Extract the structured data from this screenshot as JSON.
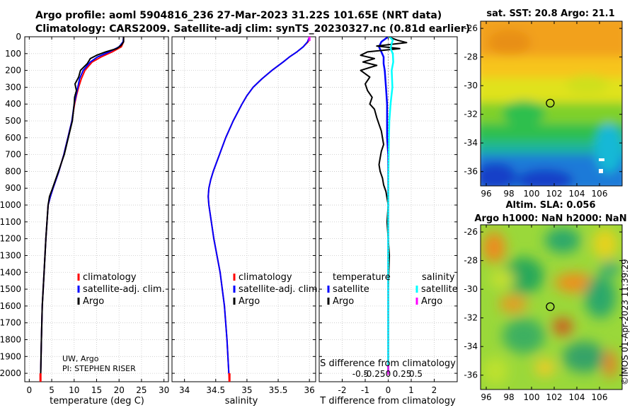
{
  "header": {
    "line1": "Argo profile: aoml 5904816_236 27-Mar-2023 31.22S 101.65E (NRT data)",
    "line2": "Climatology: CARS2009. Satellite-adj clim: synTS_20230327.nc (0.81d earlier)"
  },
  "colors": {
    "climatology": "#ff0000",
    "satellite": "#0000ff",
    "argo": "#000000",
    "sat_salinity": "#00ffff",
    "argo_salinity": "#ff00ff"
  },
  "chart_data": [
    {
      "type": "line",
      "id": "temperature",
      "xlabel": "temperature (deg C)",
      "xlim": [
        -1,
        31
      ],
      "ylim": [
        2050,
        0
      ],
      "xticks": [
        0,
        5,
        10,
        15,
        20,
        25,
        30
      ],
      "yticks": [
        0,
        100,
        200,
        300,
        400,
        500,
        600,
        700,
        800,
        900,
        1000,
        1100,
        1200,
        1300,
        1400,
        1500,
        1600,
        1700,
        1800,
        1900,
        2000
      ],
      "legend": {
        "placement": "center-right",
        "entries": [
          "climatology",
          "satellite-adj. clim.",
          "Argo"
        ]
      },
      "annotation": [
        "UW, Argo",
        "PI: STEPHEN RISER"
      ],
      "series": [
        {
          "name": "climatology",
          "depth": [
            0,
            30,
            60,
            90,
            120,
            150,
            200,
            250,
            300,
            350,
            400,
            500,
            600,
            700,
            800,
            900,
            950,
            1000,
            1200,
            1400,
            1600,
            1800,
            2000,
            2050
          ],
          "values": [
            21,
            21,
            20.5,
            18.5,
            16,
            14,
            12.4,
            11.6,
            11,
            10.5,
            10.1,
            9.5,
            8.6,
            7.7,
            6.6,
            5.3,
            4.7,
            4.2,
            3.7,
            3.3,
            2.9,
            2.7,
            2.55,
            2.5
          ]
        },
        {
          "name": "satellite-adj. clim.",
          "depth": [
            0,
            30,
            60,
            90,
            120,
            150,
            200,
            250,
            300,
            350,
            400,
            500,
            600,
            700,
            800,
            900,
            950,
            1000,
            1200,
            1400,
            1600,
            1800,
            2000
          ],
          "values": [
            21,
            20.9,
            20,
            17.8,
            15.2,
            13.6,
            12,
            11.2,
            10.8,
            10.4,
            10,
            9.5,
            8.6,
            7.7,
            6.6,
            5.3,
            4.7,
            4.2,
            3.7,
            3.3,
            2.9,
            2.7,
            2.55
          ]
        },
        {
          "name": "Argo",
          "depth": [
            0,
            30,
            50,
            70,
            90,
            110,
            130,
            160,
            200,
            240,
            280,
            320,
            360,
            400,
            450,
            500,
            600,
            700,
            800,
            900,
            950,
            1000,
            1200,
            1400,
            1600,
            1800,
            2000
          ],
          "values": [
            21,
            21,
            20.5,
            19.5,
            17,
            15,
            13.6,
            12.9,
            11.4,
            11,
            10.2,
            10.5,
            10.1,
            10,
            9.8,
            9.6,
            8.7,
            7.8,
            6.5,
            5.2,
            4.5,
            4.2,
            3.7,
            3.3,
            2.9,
            2.7,
            2.55
          ]
        }
      ]
    },
    {
      "type": "line",
      "id": "salinity",
      "xlabel": "salinity",
      "xlim": [
        33.8,
        36.1
      ],
      "ylim": [
        2050,
        0
      ],
      "xticks": [
        34,
        34.5,
        35,
        35.5,
        36
      ],
      "legend": {
        "placement": "center-right",
        "entries": [
          "climatology",
          "satellite-adj. clim.",
          "Argo"
        ]
      },
      "series": [
        {
          "name": "climatology",
          "depth": [
            0,
            30,
            60,
            90,
            120,
            150,
            200,
            250,
            300,
            350,
            400,
            500,
            600,
            700,
            800,
            850,
            900,
            950,
            1000,
            1200,
            1400,
            1600,
            1800,
            2000,
            2050
          ],
          "values": [
            36.0,
            35.98,
            35.9,
            35.8,
            35.68,
            35.58,
            35.4,
            35.24,
            35.1,
            35.0,
            34.92,
            34.78,
            34.66,
            34.56,
            34.46,
            34.42,
            34.39,
            34.38,
            34.39,
            34.47,
            34.57,
            34.64,
            34.68,
            34.71,
            34.72
          ]
        },
        {
          "name": "satellite-adj. clim.",
          "depth": [
            0,
            30,
            60,
            90,
            120,
            150,
            200,
            250,
            300,
            350,
            400,
            500,
            600,
            700,
            800,
            850,
            900,
            950,
            1000,
            1200,
            1400,
            1600,
            1800,
            2000
          ],
          "values": [
            36.0,
            35.97,
            35.9,
            35.8,
            35.68,
            35.58,
            35.4,
            35.24,
            35.1,
            35.0,
            34.92,
            34.78,
            34.66,
            34.56,
            34.46,
            34.42,
            34.39,
            34.38,
            34.39,
            34.47,
            34.57,
            34.64,
            34.68,
            34.71
          ]
        }
      ]
    },
    {
      "type": "line",
      "id": "difference",
      "xlabel": "T difference from climatology",
      "xlabel_top": "S difference from climatology",
      "xlim": [
        -3,
        3
      ],
      "ylim": [
        2050,
        0
      ],
      "xticks": [
        -2,
        -1,
        0,
        1,
        2
      ],
      "s_ticks": [
        -0.5,
        -0.25,
        0,
        0.25,
        0.5
      ],
      "s_tick_labels": [
        "-0.5",
        "-0.25",
        "0",
        "0.25",
        "0.5"
      ],
      "legend": {
        "placement": "center",
        "headers": [
          "temperature",
          "salinity"
        ],
        "entries": [
          "satellite",
          "Argo",
          "satellite",
          "Argo"
        ]
      },
      "series": [
        {
          "name": "temperature satellite",
          "depth": [
            0,
            30,
            60,
            90,
            120,
            160,
            200,
            300,
            400,
            500,
            600,
            700,
            800,
            900,
            1000,
            1200,
            1400,
            1600,
            1800,
            2000
          ],
          "values": [
            0,
            -0.3,
            -0.4,
            -0.3,
            -0.2,
            -0.2,
            -0.15,
            -0.1,
            -0.05,
            -0.05,
            -0.05,
            0,
            0,
            0,
            0,
            0,
            0,
            0,
            0,
            0
          ]
        },
        {
          "name": "temperature Argo",
          "depth": [
            0,
            20,
            35,
            55,
            70,
            90,
            110,
            130,
            150,
            170,
            200,
            240,
            280,
            320,
            360,
            400,
            430,
            480,
            520,
            560,
            600,
            640,
            680,
            720,
            760,
            800,
            840,
            880,
            920,
            960,
            1000,
            1100,
            1200,
            1300,
            1500,
            1700,
            2000
          ],
          "values": [
            0,
            0.4,
            0.8,
            -0.5,
            0.5,
            -0.9,
            -1.2,
            -0.6,
            -1.1,
            -0.5,
            -1.2,
            -0.8,
            -1.0,
            -0.9,
            -0.7,
            -0.8,
            -0.6,
            -0.5,
            -0.4,
            -0.3,
            -0.25,
            -0.2,
            -0.3,
            -0.35,
            -0.4,
            -0.35,
            -0.25,
            -0.2,
            -0.1,
            -0.05,
            0,
            -0.05,
            0,
            0.05,
            0,
            0,
            0
          ]
        },
        {
          "name": "salinity satellite",
          "depth": [
            0,
            20,
            40,
            70,
            100,
            150,
            200,
            300,
            400,
            500,
            600,
            800,
            1000,
            1200,
            1500,
            2000
          ],
          "values": [
            0.05,
            0.2,
            0.15,
            0.1,
            0.2,
            0.22,
            0.15,
            0.18,
            0.1,
            0.05,
            0.03,
            0.01,
            0,
            0,
            0,
            0
          ]
        },
        {
          "name": "salinity Argo",
          "depth": [
            1950,
            2010
          ],
          "values": [
            0,
            0
          ]
        }
      ]
    },
    {
      "type": "heatmap",
      "id": "sst_map",
      "title": "sat. SST: 20.8 Argo: 21.1",
      "xticks": [
        96,
        98,
        100,
        102,
        104,
        106
      ],
      "yticks": [
        -26,
        -28,
        -30,
        -32,
        -34,
        -36
      ],
      "xlim": [
        95.5,
        108
      ],
      "ylim": [
        -37,
        -25.5
      ],
      "marker": [
        101.65,
        -31.22
      ]
    },
    {
      "type": "heatmap",
      "id": "sla_map",
      "title": "Altim. SLA: 0.056",
      "subtitle": "Argo h1000: NaN h2000: NaN",
      "xticks": [
        96,
        98,
        100,
        102,
        104,
        106
      ],
      "yticks": [
        -26,
        -28,
        -30,
        -32,
        -34,
        -36
      ],
      "xlim": [
        95.5,
        108
      ],
      "ylim": [
        -37,
        -25.5
      ],
      "marker": [
        101.65,
        -31.22
      ]
    }
  ],
  "stamp": "©IMOS 01-Apr-2023 11:39:29"
}
